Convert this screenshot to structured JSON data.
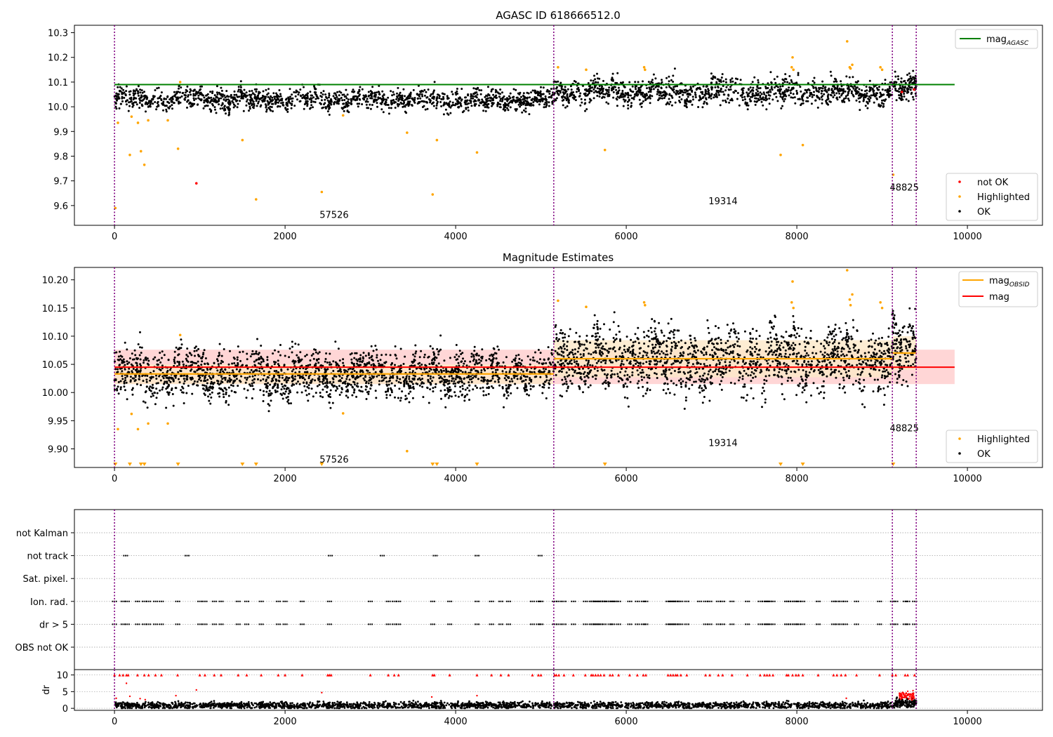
{
  "colors": {
    "agasc_line": "#008000",
    "obsid_line": "#ffa500",
    "mag_line": "#ff0000",
    "mag_band": "#ffcccc",
    "obsid_band": "#fde9c8",
    "ok": "#000000",
    "highlighted": "#ffa500",
    "not_ok": "#ff0000",
    "obs_boundary": "#800080",
    "grid": "#b0b0b0"
  },
  "chart_data": [
    {
      "id": "agasc",
      "type": "scatter",
      "title": "AGASC ID 618666512.0",
      "xlabel": "",
      "ylabel": "",
      "xlim": [
        -470,
        10880
      ],
      "ylim": [
        9.52,
        10.33
      ],
      "xticks": [
        0,
        2000,
        4000,
        6000,
        8000,
        10000
      ],
      "xtick_labels": [
        "0",
        "2000",
        "4000",
        "6000",
        "8000",
        "10000"
      ],
      "yticks": [
        9.6,
        9.7,
        9.8,
        9.9,
        10.0,
        10.1,
        10.2,
        10.3
      ],
      "ytick_labels": [
        "9.6",
        "9.7",
        "9.8",
        "9.9",
        "10.0",
        "10.1",
        "10.2",
        "10.3"
      ],
      "reference_line": {
        "name": "mag",
        "subscript": "AGASC",
        "y": 10.09,
        "x": [
          0,
          9850
        ]
      },
      "obs_boundaries": [
        0,
        5150,
        9120,
        9400
      ],
      "obs_labels": [
        {
          "text": "57526",
          "x": 2575,
          "y": 9.55
        },
        {
          "text": "19314",
          "x": 7135,
          "y": 9.605
        },
        {
          "text": "48825",
          "x": 9260,
          "y": 9.66
        }
      ],
      "series": [
        {
          "name": "not OK",
          "points": [
            [
              960,
              9.69
            ],
            [
              9375,
              10.07
            ],
            [
              9232,
              10.06
            ]
          ]
        },
        {
          "name": "Highlighted",
          "points": [
            [
              10,
              9.59
            ],
            [
              40,
              9.935
            ],
            [
              180,
              9.805
            ],
            [
              200,
              9.96
            ],
            [
              275,
              9.935
            ],
            [
              310,
              9.82
            ],
            [
              350,
              9.765
            ],
            [
              395,
              9.945
            ],
            [
              625,
              9.945
            ],
            [
              745,
              9.83
            ],
            [
              770,
              10.1
            ],
            [
              1500,
              9.865
            ],
            [
              1660,
              9.625
            ],
            [
              2430,
              9.655
            ],
            [
              2680,
              9.965
            ],
            [
              3430,
              9.895
            ],
            [
              3730,
              9.645
            ],
            [
              3780,
              9.865
            ],
            [
              4250,
              9.815
            ],
            [
              5200,
              10.16
            ],
            [
              5530,
              10.15
            ],
            [
              5750,
              9.825
            ],
            [
              6210,
              10.16
            ],
            [
              6220,
              10.15
            ],
            [
              7810,
              9.805
            ],
            [
              7950,
              10.2
            ],
            [
              7940,
              10.16
            ],
            [
              7960,
              10.15
            ],
            [
              8070,
              9.845
            ],
            [
              8590,
              10.265
            ],
            [
              8620,
              10.16
            ],
            [
              8650,
              10.17
            ],
            [
              8630,
              10.155
            ],
            [
              8980,
              10.16
            ],
            [
              9000,
              10.15
            ],
            [
              9130,
              9.725
            ]
          ]
        },
        {
          "name": "OK",
          "generated": true,
          "segments": [
            {
              "x0": 0,
              "x1": 5150,
              "center": 10.03,
              "spread": 0.028,
              "n": 1500
            },
            {
              "x0": 5150,
              "x1": 9120,
              "center": 10.06,
              "spread": 0.035,
              "n": 1200
            },
            {
              "x0": 9120,
              "x1": 9400,
              "center": 10.075,
              "spread": 0.035,
              "n": 110
            }
          ]
        }
      ],
      "legend": [
        {
          "label": "mag",
          "sub": "AGASC",
          "kind": "line"
        },
        {
          "label": "not OK",
          "kind": "point"
        },
        {
          "label": "Highlighted",
          "kind": "point"
        },
        {
          "label": "OK",
          "kind": "point"
        }
      ],
      "legend_placement": [
        "top-right",
        "bottom-right"
      ]
    },
    {
      "id": "estimates",
      "type": "scatter",
      "title": "Magnitude Estimates",
      "xlabel": "",
      "ylabel": "",
      "xlim": [
        -470,
        10880
      ],
      "ylim": [
        9.867,
        10.222
      ],
      "xticks": [
        0,
        2000,
        4000,
        6000,
        8000,
        10000
      ],
      "xtick_labels": [
        "0",
        "2000",
        "4000",
        "6000",
        "8000",
        "10000"
      ],
      "yticks": [
        9.9,
        9.95,
        10.0,
        10.05,
        10.1,
        10.15,
        10.2
      ],
      "ytick_labels": [
        "9.90",
        "9.95",
        "10.00",
        "10.05",
        "10.10",
        "10.15",
        "10.20"
      ],
      "mag_line": {
        "y": 10.045,
        "band": [
          10.015,
          10.076
        ],
        "x": [
          0,
          9850
        ]
      },
      "obsid_segments": [
        {
          "x0": 0,
          "x1": 5150,
          "y": 10.033,
          "band": [
            10.015,
            10.05
          ]
        },
        {
          "x0": 5150,
          "x1": 9120,
          "y": 10.06,
          "band": [
            10.027,
            10.093
          ]
        },
        {
          "x0": 9120,
          "x1": 9400,
          "y": 10.07,
          "band": [
            10.04,
            10.1
          ]
        }
      ],
      "obs_boundaries": [
        0,
        5150,
        9120,
        9400
      ],
      "obs_labels": [
        {
          "text": "57526",
          "x": 2575,
          "y": 9.876
        },
        {
          "text": "19314",
          "x": 7135,
          "y": 9.905
        },
        {
          "text": "48825",
          "x": 9260,
          "y": 9.931
        }
      ],
      "series": [
        {
          "name": "Highlighted",
          "points": [
            [
              40,
              9.935
            ],
            [
              200,
              9.962
            ],
            [
              275,
              9.935
            ],
            [
              395,
              9.945
            ],
            [
              625,
              9.945
            ],
            [
              770,
              10.102
            ],
            [
              2680,
              9.963
            ],
            [
              3430,
              9.896
            ],
            [
              5200,
              10.163
            ],
            [
              5530,
              10.152
            ],
            [
              6210,
              10.16
            ],
            [
              6220,
              10.155
            ],
            [
              7950,
              10.197
            ],
            [
              7940,
              10.16
            ],
            [
              7960,
              10.15
            ],
            [
              8590,
              10.217
            ],
            [
              8620,
              10.165
            ],
            [
              8650,
              10.174
            ],
            [
              8630,
              10.155
            ],
            [
              8980,
              10.16
            ],
            [
              9000,
              10.15
            ]
          ]
        },
        {
          "name": "Highlighted (below range)",
          "markers": "triangle-down",
          "x": [
            10,
            180,
            310,
            350,
            745,
            1500,
            1660,
            2430,
            3730,
            3780,
            4250,
            5750,
            7810,
            8070,
            9130
          ]
        },
        {
          "name": "OK",
          "generated": true,
          "segments": [
            {
              "x0": 0,
              "x1": 5150,
              "center": 10.033,
              "spread": 0.028,
              "n": 2000
            },
            {
              "x0": 5150,
              "x1": 9120,
              "center": 10.06,
              "spread": 0.038,
              "n": 1600
            },
            {
              "x0": 9120,
              "x1": 9400,
              "center": 10.07,
              "spread": 0.04,
              "n": 140
            }
          ]
        }
      ],
      "legend": [
        {
          "label": "mag",
          "sub": "OBSID",
          "kind": "line"
        },
        {
          "label": "mag",
          "kind": "line"
        },
        {
          "label": "Highlighted",
          "kind": "point"
        },
        {
          "label": "OK",
          "kind": "point"
        }
      ],
      "legend_placement": [
        "top-right",
        "bottom-right"
      ]
    },
    {
      "id": "flags",
      "type": "scatter",
      "title": "",
      "xlim": [
        -470,
        10880
      ],
      "rows": [
        "not Kalman",
        "not track",
        "Sat. pixel.",
        "Ion. rad.",
        "dr > 5",
        "OBS not OK"
      ],
      "obs_boundaries": [
        0,
        5150,
        9120,
        9400
      ],
      "flag_x": {
        "not track": [
          130,
          850,
          2530,
          3140,
          3760,
          4250,
          4990
        ],
        "ion_dr": [
          0,
          100,
          150,
          270,
          350,
          400,
          480,
          550,
          740,
          1000,
          1060,
          1170,
          1250,
          1450,
          1550,
          1720,
          1920,
          2000,
          2200,
          2520,
          3000,
          3210,
          3280,
          3330,
          3730,
          3930,
          4250,
          4420,
          4530,
          4620,
          4900,
          4970,
          5000,
          5160,
          5210,
          5270,
          5380,
          5520,
          5590,
          5610,
          5640,
          5670,
          5700,
          5740,
          5810,
          5840,
          5910,
          6040,
          6130,
          6200,
          6230,
          6490,
          6520,
          6550,
          6580,
          6600,
          6640,
          6710,
          6930,
          6980,
          7080,
          7130,
          7240,
          7420,
          7570,
          7620,
          7650,
          7680,
          7720,
          7880,
          7900,
          7950,
          7990,
          8020,
          8070,
          8250,
          8430,
          8470,
          8520,
          8570,
          8700,
          8970,
          9120,
          9160,
          9270,
          9300,
          9380
        ],
        "ion_only": [
          5720,
          5770,
          5870,
          6860
        ]
      }
    },
    {
      "id": "dr",
      "type": "scatter",
      "ylabel": "dr",
      "xlim": [
        -470,
        10880
      ],
      "ylim": [
        -0.6,
        11.6
      ],
      "xticks": [
        0,
        2000,
        4000,
        6000,
        8000,
        10000
      ],
      "xtick_labels": [
        "0",
        "2000",
        "4000",
        "6000",
        "8000",
        "10000"
      ],
      "yticks": [
        0,
        5,
        10
      ],
      "ytick_labels": [
        "0",
        "5",
        "10"
      ],
      "obs_boundaries": [
        0,
        5150,
        9120,
        9400
      ],
      "series": [
        {
          "name": "dr OK",
          "generated": true,
          "segments": [
            {
              "x0": 0,
              "x1": 9150,
              "center": 0.9,
              "spread": 0.5,
              "n": 2400
            },
            {
              "x0": 9150,
              "x1": 9400,
              "center": 1.6,
              "spread": 0.6,
              "n": 120
            }
          ]
        },
        {
          "name": "dr not OK",
          "points": [
            [
              20,
              3.0
            ],
            [
              140,
              7.5
            ],
            [
              180,
              3.6
            ],
            [
              300,
              2.9
            ],
            [
              360,
              2.6
            ],
            [
              720,
              3.8
            ],
            [
              960,
              5.5
            ],
            [
              2430,
              4.7
            ],
            [
              3720,
              3.4
            ],
            [
              4250,
              3.8
            ],
            [
              8580,
              3.0
            ]
          ],
          "band": {
            "x0": 9200,
            "x1": 9380,
            "center": 3.8,
            "spread": 0.6,
            "n": 90
          }
        },
        {
          "name": "dr capped",
          "markers": "triangle-up",
          "value": 10,
          "x": [
            0,
            60,
            100,
            140,
            160,
            270,
            350,
            400,
            480,
            550,
            740,
            1000,
            1060,
            1170,
            1250,
            1450,
            1550,
            1720,
            1920,
            2000,
            2200,
            2500,
            2520,
            2540,
            3000,
            3210,
            3280,
            3330,
            3730,
            3750,
            3930,
            4250,
            4420,
            4530,
            4620,
            4900,
            4970,
            5000,
            5160,
            5180,
            5210,
            5270,
            5380,
            5520,
            5590,
            5610,
            5640,
            5670,
            5700,
            5740,
            5810,
            5840,
            5910,
            6040,
            6130,
            6200,
            6230,
            6490,
            6520,
            6550,
            6580,
            6600,
            6640,
            6710,
            6930,
            6980,
            7080,
            7130,
            7240,
            7420,
            7570,
            7620,
            7650,
            7680,
            7720,
            7880,
            7900,
            7950,
            7990,
            8020,
            8070,
            8250,
            8430,
            8470,
            8520,
            8570,
            8700,
            8970,
            9120,
            9160,
            9270,
            9300,
            9380
          ]
        }
      ]
    }
  ]
}
